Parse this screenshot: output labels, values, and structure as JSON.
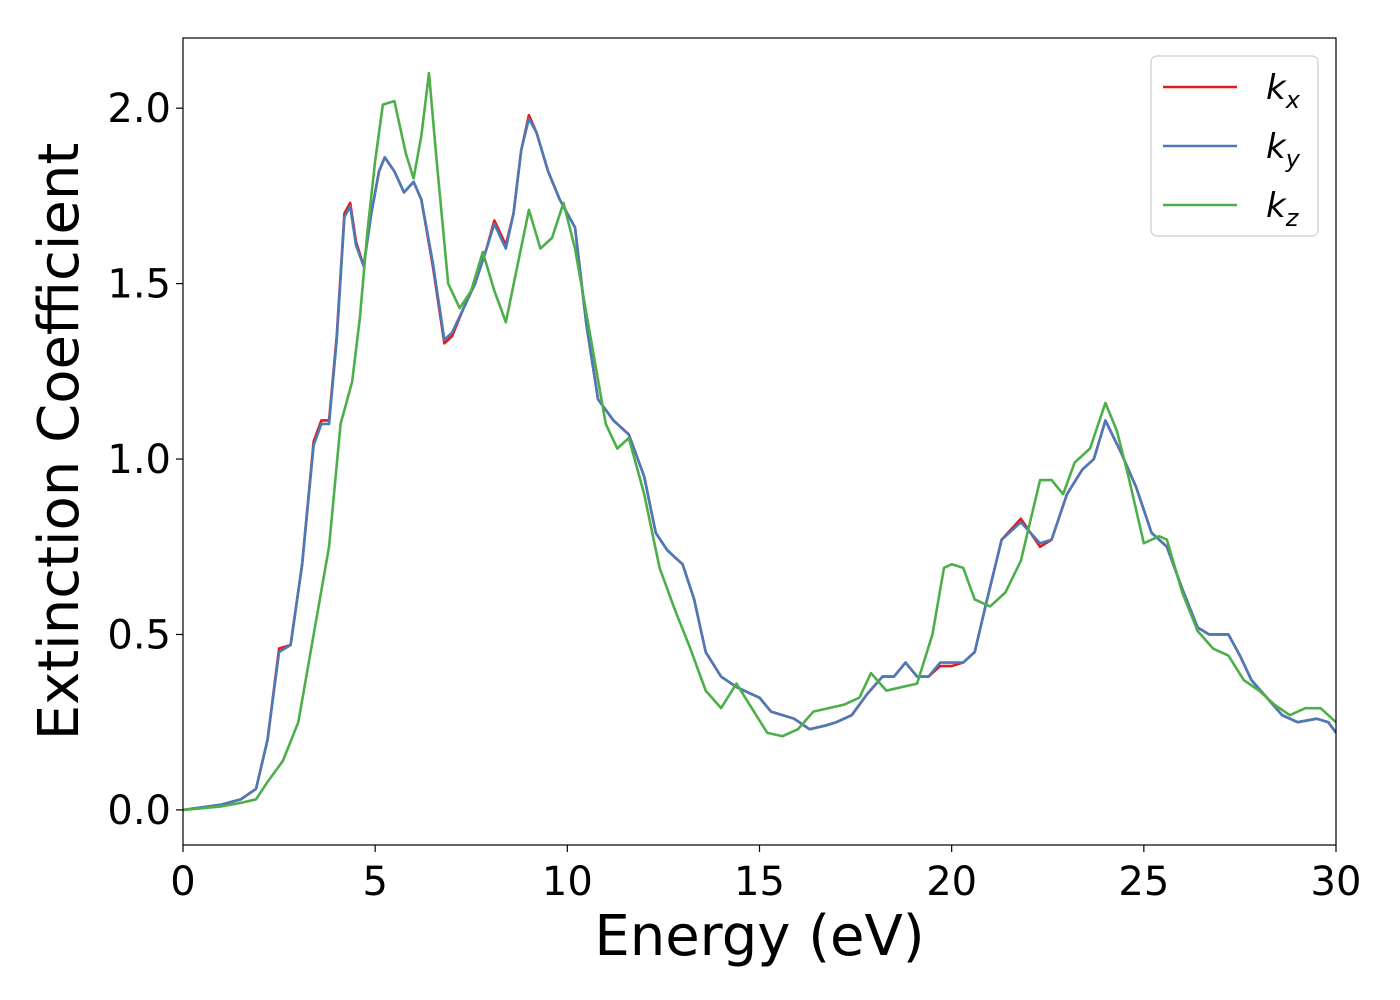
{
  "chart_data": {
    "type": "line",
    "title": "",
    "xlabel": "Energy (eV)",
    "ylabel": "Extinction Coefficient",
    "xlim": [
      0,
      30
    ],
    "ylim": [
      -0.1,
      2.2
    ],
    "xticks": [
      0,
      5,
      10,
      15,
      20,
      25,
      30
    ],
    "xtick_labels": [
      "0",
      "5",
      "10",
      "15",
      "20",
      "25",
      "30"
    ],
    "yticks": [
      0.0,
      0.5,
      1.0,
      1.5,
      2.0
    ],
    "ytick_labels": [
      "0.0",
      "0.5",
      "1.0",
      "1.5",
      "2.0"
    ],
    "grid": false,
    "legend_position": "top-right",
    "series": [
      {
        "name": "k_x",
        "label_main": "k",
        "label_sub": "x",
        "color": "#e41a1c",
        "points": [
          [
            0,
            0
          ],
          [
            1,
            0.015
          ],
          [
            1.5,
            0.03
          ],
          [
            1.9,
            0.06
          ],
          [
            2.2,
            0.2
          ],
          [
            2.5,
            0.46
          ],
          [
            2.8,
            0.47
          ],
          [
            3.1,
            0.7
          ],
          [
            3.4,
            1.05
          ],
          [
            3.6,
            1.11
          ],
          [
            3.8,
            1.11
          ],
          [
            4.0,
            1.35
          ],
          [
            4.2,
            1.7
          ],
          [
            4.35,
            1.73
          ],
          [
            4.5,
            1.62
          ],
          [
            4.7,
            1.55
          ],
          [
            4.9,
            1.7
          ],
          [
            5.1,
            1.82
          ],
          [
            5.25,
            1.86
          ],
          [
            5.5,
            1.82
          ],
          [
            5.75,
            1.76
          ],
          [
            6.0,
            1.79
          ],
          [
            6.2,
            1.74
          ],
          [
            6.5,
            1.55
          ],
          [
            6.8,
            1.33
          ],
          [
            7.0,
            1.35
          ],
          [
            7.3,
            1.43
          ],
          [
            7.6,
            1.5
          ],
          [
            7.9,
            1.6
          ],
          [
            8.1,
            1.68
          ],
          [
            8.4,
            1.61
          ],
          [
            8.6,
            1.7
          ],
          [
            8.8,
            1.88
          ],
          [
            9.0,
            1.98
          ],
          [
            9.2,
            1.93
          ],
          [
            9.5,
            1.82
          ],
          [
            9.8,
            1.74
          ],
          [
            10.2,
            1.66
          ],
          [
            10.5,
            1.38
          ],
          [
            10.8,
            1.17
          ],
          [
            11.2,
            1.11
          ],
          [
            11.6,
            1.07
          ],
          [
            12.0,
            0.95
          ],
          [
            12.3,
            0.79
          ],
          [
            12.6,
            0.74
          ],
          [
            13.0,
            0.7
          ],
          [
            13.3,
            0.6
          ],
          [
            13.6,
            0.45
          ],
          [
            14.0,
            0.38
          ],
          [
            14.4,
            0.35
          ],
          [
            14.8,
            0.33
          ],
          [
            15.0,
            0.32
          ],
          [
            15.3,
            0.28
          ],
          [
            15.6,
            0.27
          ],
          [
            15.9,
            0.26
          ],
          [
            16.3,
            0.23
          ],
          [
            16.7,
            0.24
          ],
          [
            17.0,
            0.25
          ],
          [
            17.4,
            0.27
          ],
          [
            17.8,
            0.33
          ],
          [
            18.2,
            0.38
          ],
          [
            18.5,
            0.38
          ],
          [
            18.8,
            0.42
          ],
          [
            19.1,
            0.38
          ],
          [
            19.4,
            0.38
          ],
          [
            19.7,
            0.41
          ],
          [
            20.0,
            0.41
          ],
          [
            20.3,
            0.42
          ],
          [
            20.6,
            0.45
          ],
          [
            20.9,
            0.59
          ],
          [
            21.3,
            0.77
          ],
          [
            21.8,
            0.83
          ],
          [
            22.3,
            0.75
          ],
          [
            22.6,
            0.77
          ],
          [
            23.0,
            0.9
          ],
          [
            23.4,
            0.97
          ],
          [
            23.7,
            1.0
          ],
          [
            24.0,
            1.11
          ],
          [
            24.4,
            1.02
          ],
          [
            24.8,
            0.92
          ],
          [
            25.2,
            0.79
          ],
          [
            25.6,
            0.75
          ],
          [
            26.0,
            0.63
          ],
          [
            26.4,
            0.52
          ],
          [
            26.7,
            0.5
          ],
          [
            27.2,
            0.5
          ],
          [
            27.5,
            0.44
          ],
          [
            27.8,
            0.37
          ],
          [
            28.2,
            0.32
          ],
          [
            28.6,
            0.27
          ],
          [
            29.0,
            0.25
          ],
          [
            29.5,
            0.26
          ],
          [
            29.8,
            0.25
          ],
          [
            30.0,
            0.22
          ]
        ]
      },
      {
        "name": "k_y",
        "label_main": "k",
        "label_sub": "y",
        "color": "#4a7ab8",
        "points": [
          [
            0,
            0
          ],
          [
            1,
            0.015
          ],
          [
            1.5,
            0.03
          ],
          [
            1.9,
            0.06
          ],
          [
            2.2,
            0.2
          ],
          [
            2.5,
            0.45
          ],
          [
            2.8,
            0.47
          ],
          [
            3.1,
            0.7
          ],
          [
            3.4,
            1.04
          ],
          [
            3.6,
            1.1
          ],
          [
            3.8,
            1.1
          ],
          [
            4.0,
            1.34
          ],
          [
            4.2,
            1.69
          ],
          [
            4.35,
            1.72
          ],
          [
            4.5,
            1.61
          ],
          [
            4.7,
            1.55
          ],
          [
            4.9,
            1.7
          ],
          [
            5.1,
            1.82
          ],
          [
            5.25,
            1.86
          ],
          [
            5.5,
            1.82
          ],
          [
            5.75,
            1.76
          ],
          [
            6.0,
            1.79
          ],
          [
            6.2,
            1.74
          ],
          [
            6.5,
            1.56
          ],
          [
            6.8,
            1.34
          ],
          [
            7.0,
            1.36
          ],
          [
            7.3,
            1.43
          ],
          [
            7.6,
            1.5
          ],
          [
            7.9,
            1.6
          ],
          [
            8.1,
            1.67
          ],
          [
            8.4,
            1.6
          ],
          [
            8.6,
            1.7
          ],
          [
            8.8,
            1.88
          ],
          [
            9.0,
            1.97
          ],
          [
            9.2,
            1.93
          ],
          [
            9.5,
            1.82
          ],
          [
            9.8,
            1.74
          ],
          [
            10.2,
            1.66
          ],
          [
            10.5,
            1.38
          ],
          [
            10.8,
            1.17
          ],
          [
            11.2,
            1.11
          ],
          [
            11.6,
            1.07
          ],
          [
            12.0,
            0.95
          ],
          [
            12.3,
            0.79
          ],
          [
            12.6,
            0.74
          ],
          [
            13.0,
            0.7
          ],
          [
            13.3,
            0.6
          ],
          [
            13.6,
            0.45
          ],
          [
            14.0,
            0.38
          ],
          [
            14.4,
            0.35
          ],
          [
            14.8,
            0.33
          ],
          [
            15.0,
            0.32
          ],
          [
            15.3,
            0.28
          ],
          [
            15.6,
            0.27
          ],
          [
            15.9,
            0.26
          ],
          [
            16.3,
            0.23
          ],
          [
            16.7,
            0.24
          ],
          [
            17.0,
            0.25
          ],
          [
            17.4,
            0.27
          ],
          [
            17.8,
            0.33
          ],
          [
            18.2,
            0.38
          ],
          [
            18.5,
            0.38
          ],
          [
            18.8,
            0.42
          ],
          [
            19.1,
            0.38
          ],
          [
            19.4,
            0.38
          ],
          [
            19.7,
            0.42
          ],
          [
            20.0,
            0.42
          ],
          [
            20.3,
            0.42
          ],
          [
            20.6,
            0.45
          ],
          [
            20.9,
            0.59
          ],
          [
            21.3,
            0.77
          ],
          [
            21.8,
            0.82
          ],
          [
            22.3,
            0.76
          ],
          [
            22.6,
            0.77
          ],
          [
            23.0,
            0.9
          ],
          [
            23.4,
            0.97
          ],
          [
            23.7,
            1.0
          ],
          [
            24.0,
            1.11
          ],
          [
            24.4,
            1.02
          ],
          [
            24.8,
            0.92
          ],
          [
            25.2,
            0.79
          ],
          [
            25.6,
            0.75
          ],
          [
            26.0,
            0.63
          ],
          [
            26.4,
            0.52
          ],
          [
            26.7,
            0.5
          ],
          [
            27.2,
            0.5
          ],
          [
            27.5,
            0.44
          ],
          [
            27.8,
            0.37
          ],
          [
            28.2,
            0.32
          ],
          [
            28.6,
            0.27
          ],
          [
            29.0,
            0.25
          ],
          [
            29.5,
            0.26
          ],
          [
            29.8,
            0.25
          ],
          [
            30.0,
            0.22
          ]
        ]
      },
      {
        "name": "k_z",
        "label_main": "k",
        "label_sub": "z",
        "color": "#4daf4a",
        "points": [
          [
            0,
            0
          ],
          [
            1,
            0.01
          ],
          [
            1.5,
            0.02
          ],
          [
            1.9,
            0.03
          ],
          [
            2.2,
            0.08
          ],
          [
            2.6,
            0.14
          ],
          [
            3.0,
            0.25
          ],
          [
            3.4,
            0.5
          ],
          [
            3.8,
            0.75
          ],
          [
            4.1,
            1.1
          ],
          [
            4.4,
            1.22
          ],
          [
            4.6,
            1.4
          ],
          [
            4.8,
            1.65
          ],
          [
            5.0,
            1.85
          ],
          [
            5.2,
            2.01
          ],
          [
            5.5,
            2.02
          ],
          [
            5.8,
            1.87
          ],
          [
            6.0,
            1.8
          ],
          [
            6.2,
            1.92
          ],
          [
            6.4,
            2.1
          ],
          [
            6.6,
            1.85
          ],
          [
            6.9,
            1.5
          ],
          [
            7.2,
            1.43
          ],
          [
            7.5,
            1.48
          ],
          [
            7.8,
            1.59
          ],
          [
            8.1,
            1.48
          ],
          [
            8.4,
            1.39
          ],
          [
            8.7,
            1.55
          ],
          [
            9.0,
            1.71
          ],
          [
            9.3,
            1.6
          ],
          [
            9.6,
            1.63
          ],
          [
            9.9,
            1.73
          ],
          [
            10.2,
            1.6
          ],
          [
            10.6,
            1.35
          ],
          [
            11.0,
            1.1
          ],
          [
            11.3,
            1.03
          ],
          [
            11.6,
            1.06
          ],
          [
            12.0,
            0.9
          ],
          [
            12.4,
            0.69
          ],
          [
            12.8,
            0.57
          ],
          [
            13.2,
            0.46
          ],
          [
            13.6,
            0.34
          ],
          [
            14.0,
            0.29
          ],
          [
            14.4,
            0.36
          ],
          [
            14.8,
            0.29
          ],
          [
            15.2,
            0.22
          ],
          [
            15.6,
            0.21
          ],
          [
            16.0,
            0.23
          ],
          [
            16.4,
            0.28
          ],
          [
            16.8,
            0.29
          ],
          [
            17.2,
            0.3
          ],
          [
            17.6,
            0.32
          ],
          [
            17.9,
            0.39
          ],
          [
            18.3,
            0.34
          ],
          [
            18.7,
            0.35
          ],
          [
            19.1,
            0.36
          ],
          [
            19.5,
            0.5
          ],
          [
            19.8,
            0.69
          ],
          [
            20.0,
            0.7
          ],
          [
            20.3,
            0.69
          ],
          [
            20.6,
            0.6
          ],
          [
            21.0,
            0.58
          ],
          [
            21.4,
            0.62
          ],
          [
            21.8,
            0.71
          ],
          [
            22.3,
            0.94
          ],
          [
            22.6,
            0.94
          ],
          [
            22.9,
            0.9
          ],
          [
            23.2,
            0.99
          ],
          [
            23.6,
            1.03
          ],
          [
            24.0,
            1.16
          ],
          [
            24.3,
            1.08
          ],
          [
            24.6,
            0.95
          ],
          [
            25.0,
            0.76
          ],
          [
            25.4,
            0.78
          ],
          [
            25.6,
            0.77
          ],
          [
            26.0,
            0.62
          ],
          [
            26.4,
            0.51
          ],
          [
            26.8,
            0.46
          ],
          [
            27.2,
            0.44
          ],
          [
            27.6,
            0.37
          ],
          [
            28.0,
            0.34
          ],
          [
            28.4,
            0.3
          ],
          [
            28.8,
            0.27
          ],
          [
            29.2,
            0.29
          ],
          [
            29.6,
            0.29
          ],
          [
            30.0,
            0.25
          ]
        ]
      }
    ]
  }
}
